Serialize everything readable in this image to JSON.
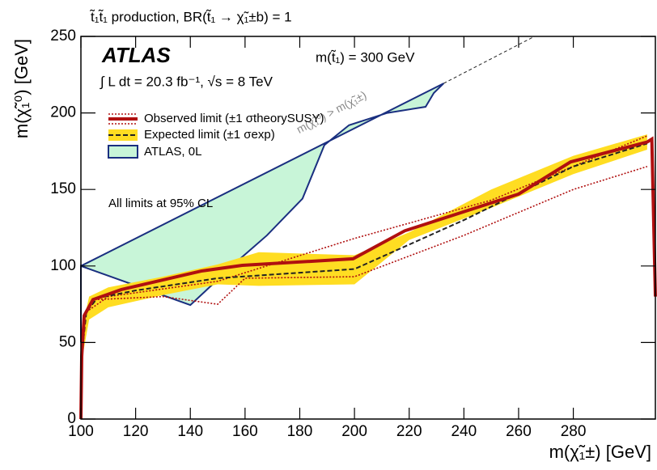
{
  "chart_data": {
    "type": "line",
    "title": "t̃₁t̃₁ production, BR(t̃₁ → χ̃₁±b) = 1",
    "experiment": "ATLAS",
    "luminosity": "∫ L dt = 20.3 fb⁻¹, √s = 8 TeV",
    "mass_note": "m(t̃₁) = 300 GeV",
    "cl_note": "All limits at 95% CL",
    "diagonal_label": "m(χ̃₁⁰) > m(χ̃₁±)",
    "x_label": "m(χ̃₁±) [GeV]",
    "y_label": "m(χ̃₁⁰) [GeV]",
    "xlim": [
      100,
      310
    ],
    "ylim": [
      0,
      250
    ],
    "xticks": [
      100,
      120,
      140,
      160,
      180,
      200,
      220,
      240,
      260,
      280
    ],
    "yticks": [
      0,
      50,
      100,
      150,
      200,
      250
    ],
    "series": [
      {
        "name": "ATLAS, 0L",
        "style": "region",
        "color": "#1a2f80",
        "fill": "#c8f5d8",
        "x": [
          100,
          100,
          140,
          159,
          168,
          181,
          189,
          198,
          212,
          226,
          229,
          232.6,
          100
        ],
        "values": [
          50,
          100,
          74.5,
          106,
          120,
          144,
          179,
          192,
          200,
          204,
          213,
          219.3,
          100
        ]
      },
      {
        "style": "band",
        "color": "#ffdd22",
        "x": [
          100.5,
          103,
          110,
          130,
          150,
          165,
          200,
          220,
          250,
          280,
          307,
          307,
          280,
          250,
          220,
          200,
          165,
          150,
          130,
          110,
          103,
          100.5
        ],
        "values": [
          60,
          80,
          86,
          93,
          101,
          109,
          107,
          122,
          150,
          172,
          186,
          176,
          160,
          138,
          117,
          88,
          87,
          88,
          81,
          73,
          65,
          40
        ]
      },
      {
        "style": "dotted",
        "color": "#b01010",
        "x": [
          102,
          110,
          150,
          200,
          250,
          307
        ],
        "values": [
          70,
          80,
          90,
          118,
          143,
          185
        ]
      },
      {
        "style": "dotted",
        "color": "#b01010",
        "x": [
          105,
          130,
          150,
          160,
          200,
          240,
          280,
          307
        ],
        "values": [
          78,
          80,
          75,
          92,
          93,
          120,
          150,
          165
        ]
      },
      {
        "name": "Expected limit (±1 σexp)",
        "style": "dashed",
        "color": "#222222",
        "x": [
          100,
          100.5,
          102,
          106,
          120,
          150,
          200,
          240,
          280,
          307
        ],
        "values": [
          0,
          45,
          70,
          79,
          84,
          92,
          98,
          130,
          165,
          180
        ]
      },
      {
        "name": "Observed limit (±1 σtheorySUSY)",
        "style": "thick",
        "color": "#b01010",
        "x": [
          100,
          100.3,
          101.2,
          104.4,
          114.8,
          144,
          159,
          199.5,
          218.4,
          260,
          279,
          307,
          308.7,
          310
        ],
        "values": [
          0,
          41,
          67.6,
          78,
          84.6,
          96.7,
          100.4,
          104.7,
          123,
          147,
          168,
          181,
          182.9,
          80
        ]
      },
      {
        "style": "thin-dashed",
        "color": "#222222",
        "x": [
          232.6,
          265.8
        ],
        "values": [
          219.3,
          250
        ]
      }
    ]
  }
}
